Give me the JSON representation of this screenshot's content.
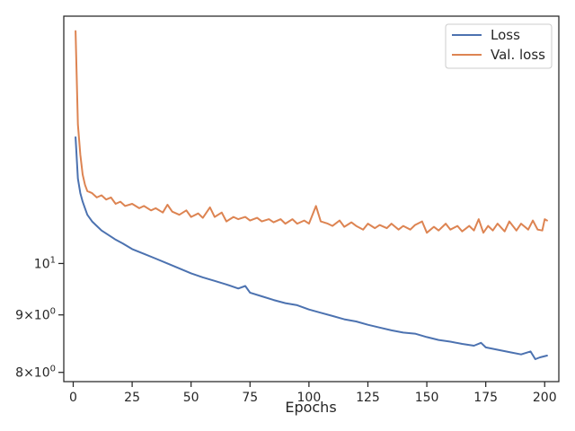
{
  "chart_data": {
    "type": "line",
    "title": "",
    "xlabel": "Epochs",
    "ylabel": "",
    "xlim": [
      -4,
      206
    ],
    "ylim": [
      7.85,
      16.6
    ],
    "yscale": "log",
    "grid": false,
    "legend_position": "top-right",
    "x_ticks": [
      {
        "value": 0,
        "label": "0"
      },
      {
        "value": 25,
        "label": "25"
      },
      {
        "value": 50,
        "label": "50"
      },
      {
        "value": 75,
        "label": "75"
      },
      {
        "value": 100,
        "label": "100"
      },
      {
        "value": 125,
        "label": "125"
      },
      {
        "value": 150,
        "label": "150"
      },
      {
        "value": 175,
        "label": "175"
      },
      {
        "value": 200,
        "label": "200"
      }
    ],
    "y_ticks": [
      {
        "value": 10,
        "base": "10",
        "exp": "1",
        "kind": "power"
      },
      {
        "value": 9,
        "mant": "9",
        "base": "10",
        "exp": "0",
        "kind": "sci"
      },
      {
        "value": 8,
        "mant": "8",
        "base": "10",
        "exp": "0",
        "kind": "sci"
      }
    ],
    "series": [
      {
        "name": "Loss",
        "color": "#4c72b0",
        "points": [
          [
            1,
            12.95
          ],
          [
            2,
            11.9
          ],
          [
            3,
            11.55
          ],
          [
            4,
            11.35
          ],
          [
            5,
            11.2
          ],
          [
            6,
            11.05
          ],
          [
            8,
            10.9
          ],
          [
            10,
            10.8
          ],
          [
            12,
            10.7
          ],
          [
            15,
            10.6
          ],
          [
            18,
            10.5
          ],
          [
            21,
            10.42
          ],
          [
            25,
            10.3
          ],
          [
            30,
            10.2
          ],
          [
            35,
            10.1
          ],
          [
            40,
            10.0
          ],
          [
            45,
            9.9
          ],
          [
            50,
            9.8
          ],
          [
            55,
            9.72
          ],
          [
            60,
            9.65
          ],
          [
            65,
            9.58
          ],
          [
            70,
            9.5
          ],
          [
            73,
            9.55
          ],
          [
            75,
            9.42
          ],
          [
            80,
            9.35
          ],
          [
            85,
            9.28
          ],
          [
            90,
            9.22
          ],
          [
            95,
            9.18
          ],
          [
            100,
            9.1
          ],
          [
            105,
            9.04
          ],
          [
            110,
            8.98
          ],
          [
            115,
            8.92
          ],
          [
            120,
            8.88
          ],
          [
            125,
            8.82
          ],
          [
            130,
            8.77
          ],
          [
            135,
            8.72
          ],
          [
            140,
            8.68
          ],
          [
            145,
            8.66
          ],
          [
            150,
            8.6
          ],
          [
            155,
            8.55
          ],
          [
            160,
            8.52
          ],
          [
            165,
            8.48
          ],
          [
            170,
            8.45
          ],
          [
            173,
            8.5
          ],
          [
            175,
            8.42
          ],
          [
            180,
            8.38
          ],
          [
            185,
            8.34
          ],
          [
            190,
            8.3
          ],
          [
            194,
            8.35
          ],
          [
            196,
            8.22
          ],
          [
            198,
            8.25
          ],
          [
            201,
            8.28
          ]
        ]
      },
      {
        "name": "Val. loss",
        "color": "#dd8452",
        "points": [
          [
            1,
            16.1
          ],
          [
            2,
            13.3
          ],
          [
            3,
            12.5
          ],
          [
            4,
            12.0
          ],
          [
            5,
            11.75
          ],
          [
            6,
            11.6
          ],
          [
            8,
            11.55
          ],
          [
            10,
            11.45
          ],
          [
            12,
            11.5
          ],
          [
            14,
            11.4
          ],
          [
            16,
            11.45
          ],
          [
            18,
            11.3
          ],
          [
            20,
            11.35
          ],
          [
            22,
            11.25
          ],
          [
            25,
            11.3
          ],
          [
            28,
            11.2
          ],
          [
            30,
            11.25
          ],
          [
            33,
            11.15
          ],
          [
            35,
            11.2
          ],
          [
            38,
            11.1
          ],
          [
            40,
            11.28
          ],
          [
            42,
            11.12
          ],
          [
            45,
            11.05
          ],
          [
            48,
            11.15
          ],
          [
            50,
            11.0
          ],
          [
            53,
            11.08
          ],
          [
            55,
            10.98
          ],
          [
            58,
            11.22
          ],
          [
            60,
            11.0
          ],
          [
            63,
            11.1
          ],
          [
            65,
            10.9
          ],
          [
            68,
            11.0
          ],
          [
            70,
            10.95
          ],
          [
            73,
            11.0
          ],
          [
            75,
            10.92
          ],
          [
            78,
            10.98
          ],
          [
            80,
            10.9
          ],
          [
            83,
            10.95
          ],
          [
            85,
            10.88
          ],
          [
            88,
            10.95
          ],
          [
            90,
            10.85
          ],
          [
            93,
            10.95
          ],
          [
            95,
            10.85
          ],
          [
            98,
            10.92
          ],
          [
            100,
            10.85
          ],
          [
            103,
            11.25
          ],
          [
            105,
            10.9
          ],
          [
            108,
            10.85
          ],
          [
            110,
            10.8
          ],
          [
            113,
            10.92
          ],
          [
            115,
            10.78
          ],
          [
            118,
            10.88
          ],
          [
            120,
            10.8
          ],
          [
            123,
            10.72
          ],
          [
            125,
            10.85
          ],
          [
            128,
            10.75
          ],
          [
            130,
            10.82
          ],
          [
            133,
            10.75
          ],
          [
            135,
            10.85
          ],
          [
            138,
            10.72
          ],
          [
            140,
            10.8
          ],
          [
            143,
            10.72
          ],
          [
            145,
            10.82
          ],
          [
            148,
            10.9
          ],
          [
            150,
            10.65
          ],
          [
            153,
            10.78
          ],
          [
            155,
            10.7
          ],
          [
            158,
            10.85
          ],
          [
            160,
            10.72
          ],
          [
            163,
            10.8
          ],
          [
            165,
            10.68
          ],
          [
            168,
            10.8
          ],
          [
            170,
            10.7
          ],
          [
            172,
            10.95
          ],
          [
            174,
            10.65
          ],
          [
            176,
            10.8
          ],
          [
            178,
            10.7
          ],
          [
            180,
            10.85
          ],
          [
            183,
            10.68
          ],
          [
            185,
            10.9
          ],
          [
            188,
            10.7
          ],
          [
            190,
            10.85
          ],
          [
            193,
            10.72
          ],
          [
            195,
            10.92
          ],
          [
            197,
            10.72
          ],
          [
            199,
            10.7
          ],
          [
            200,
            10.95
          ],
          [
            201,
            10.92
          ]
        ]
      }
    ]
  }
}
